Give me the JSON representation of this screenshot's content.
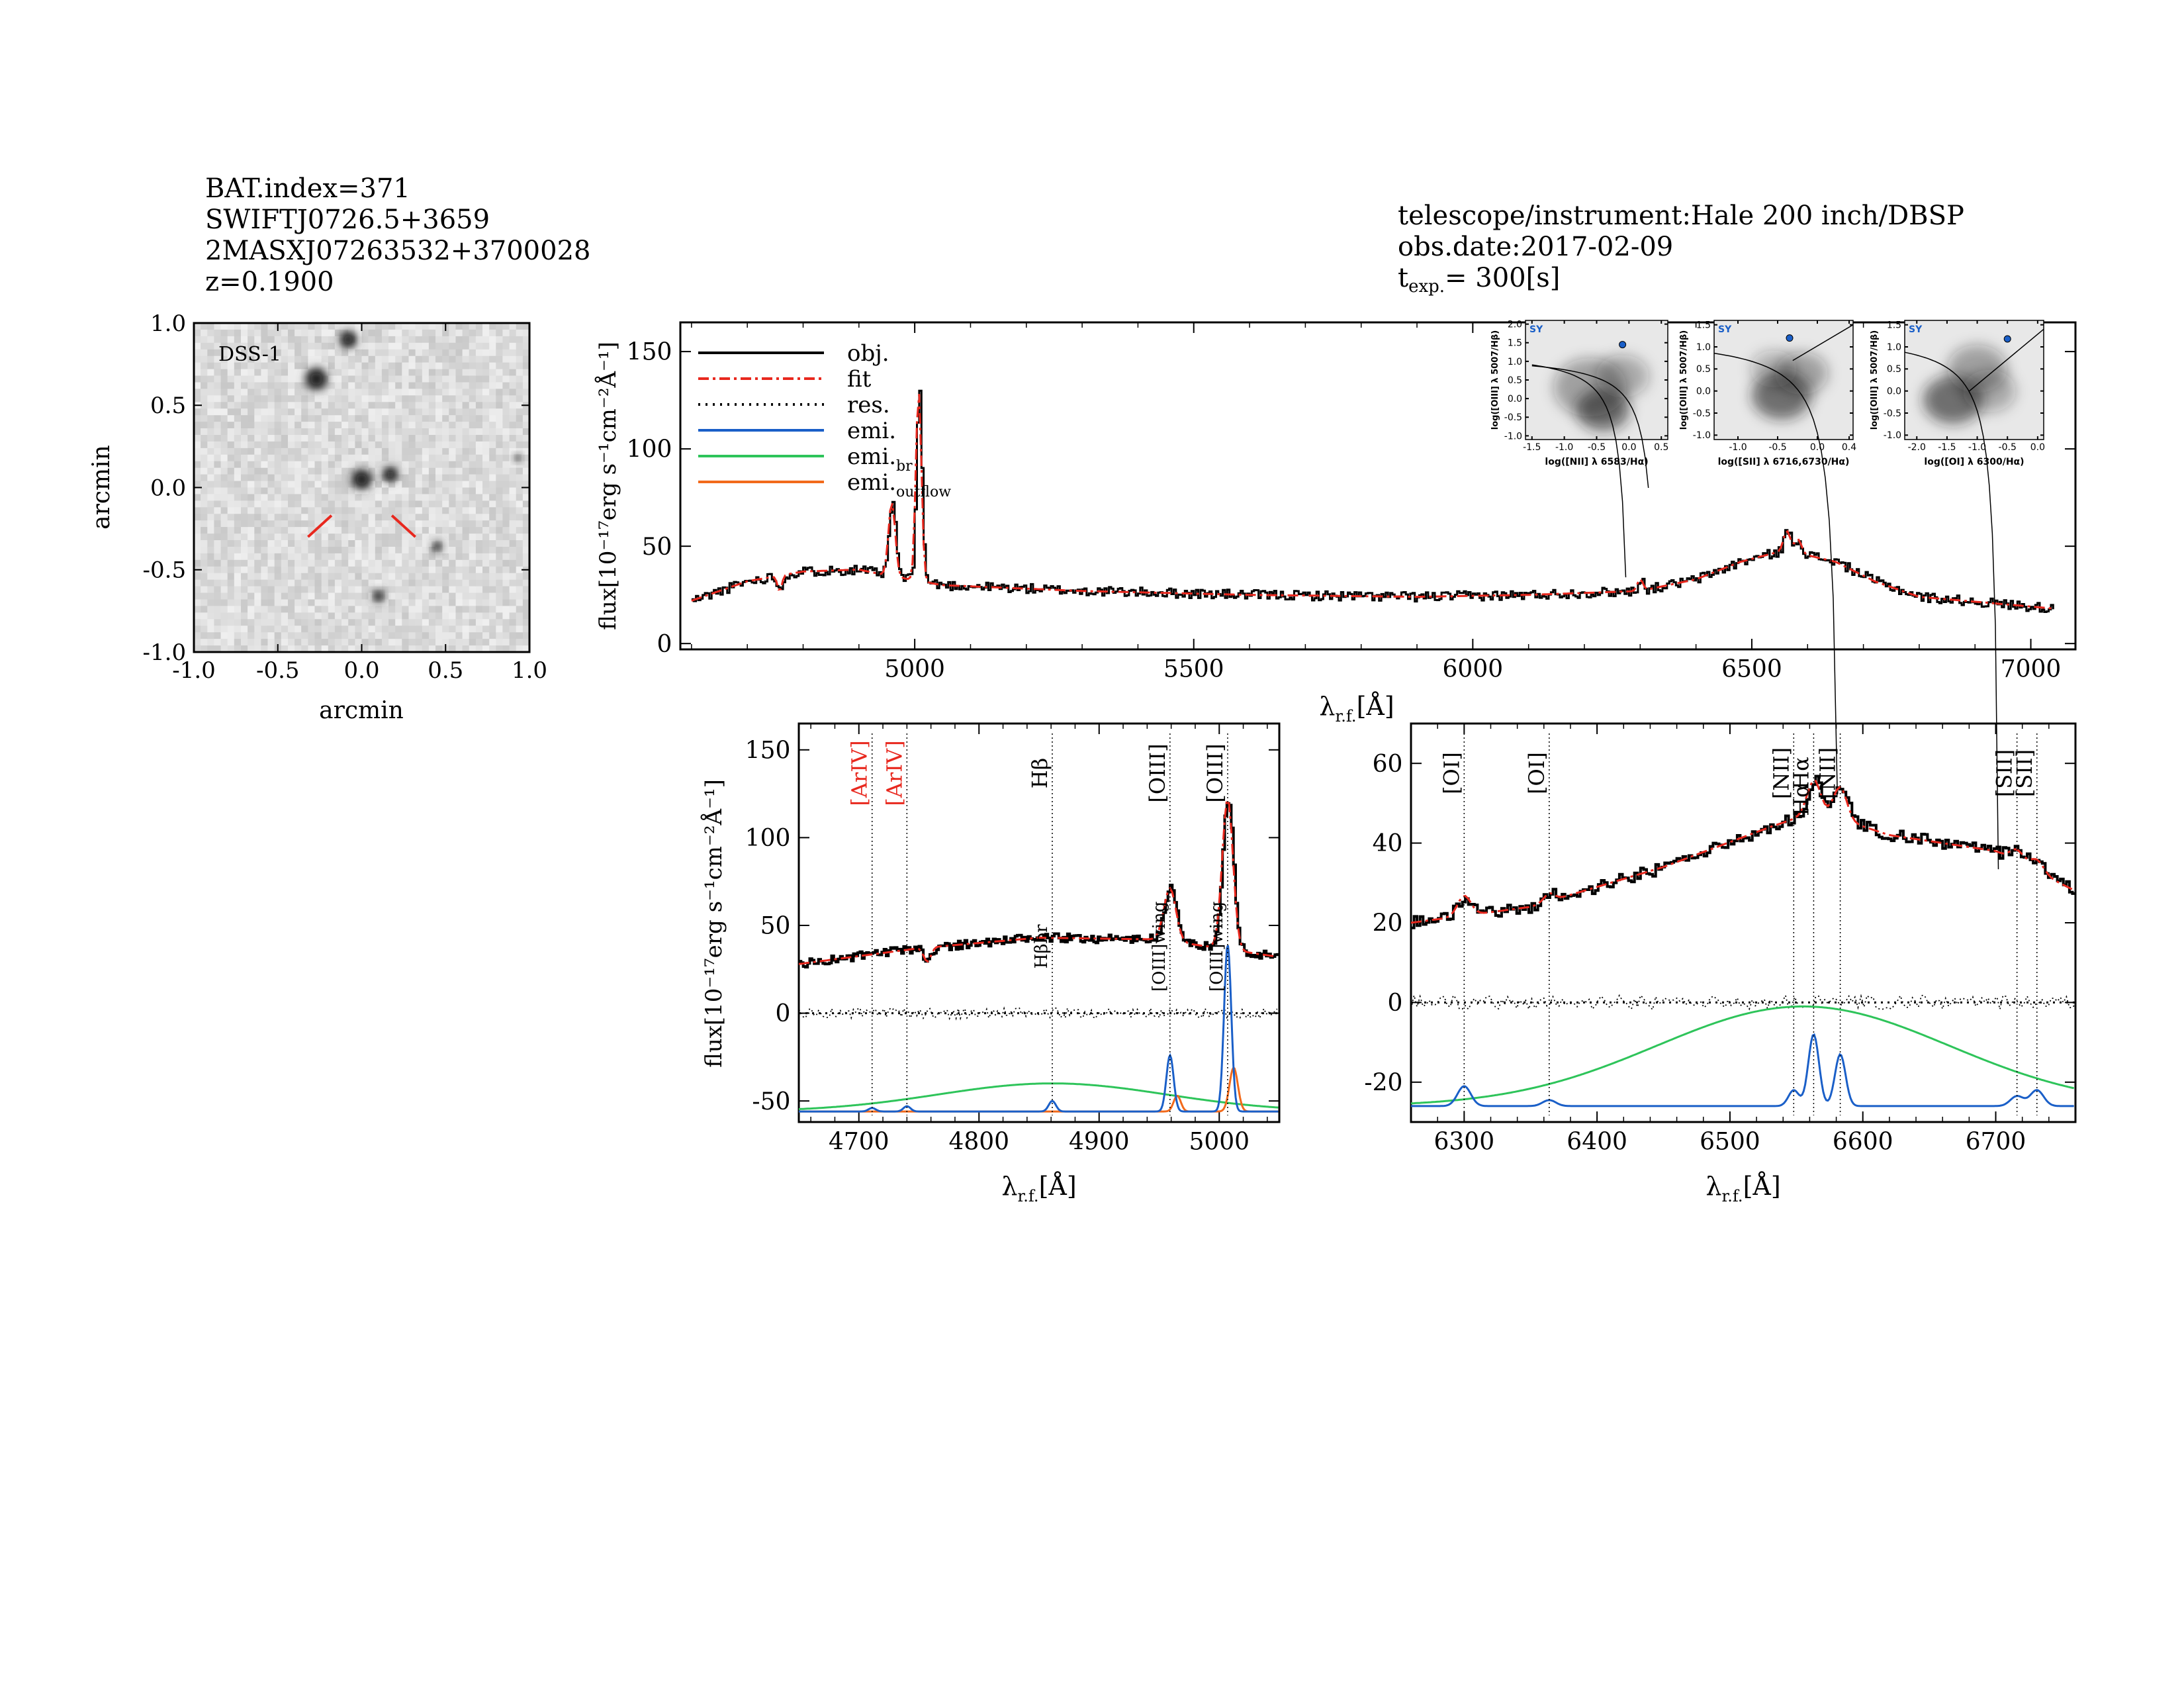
{
  "header_left": {
    "bat_index": "BAT.index=371",
    "swift_name": "SWIFTJ0726.5+3659",
    "counterpart": "2MASXJ07263532+3700028",
    "redshift": "z=0.1900"
  },
  "header_right": {
    "instrument": "telescope/instrument:Hale 200 inch/DBSP",
    "obs_date": "obs.date:2017-02-09",
    "t_symbol": "t",
    "t_sub": "exp.",
    "t_value": "= 300[s]"
  },
  "colors": {
    "obj": "#000000",
    "fit": "#e8281e",
    "emi": "#1a5fc8",
    "emi_br": "#2ec45a",
    "emi_outflow": "#f26a1b",
    "forbidden_red": "#e8281e"
  },
  "chart_data": [
    {
      "id": "dss_image",
      "type": "image",
      "label": "DSS-1",
      "xlabel": "arcmin",
      "ylabel": "arcmin",
      "xlim": [
        -1.0,
        1.0
      ],
      "ylim": [
        -1.0,
        1.0
      ],
      "xticks": [
        "-1.0",
        "-0.5",
        "0.0",
        "0.5",
        "1.0"
      ],
      "yticks": [
        "-1.0",
        "-0.5",
        "0.0",
        "0.5",
        "1.0"
      ],
      "sources_arcmin": [
        [
          -0.08,
          0.9,
          1.0
        ],
        [
          -0.27,
          0.66,
          1.3
        ],
        [
          0.0,
          0.05,
          1.2
        ],
        [
          0.17,
          0.08,
          0.9
        ],
        [
          0.45,
          -0.36,
          0.6
        ],
        [
          0.1,
          -0.66,
          0.7
        ],
        [
          0.93,
          0.18,
          0.4
        ]
      ]
    },
    {
      "id": "full_spectrum",
      "type": "line",
      "xlabel_main": "λ",
      "xlabel_sub": "r.f.",
      "xlabel_unit": "[Å]",
      "ylabel_text": "flux[10⁻¹⁷erg s⁻¹cm⁻²Å⁻¹]",
      "xlim": [
        4580,
        7080
      ],
      "ylim": [
        -3,
        165
      ],
      "xticks": [
        "5000",
        "5500",
        "6000",
        "6500",
        "7000"
      ],
      "yticks": [
        "0",
        "50",
        "100",
        "150"
      ],
      "continuum_knots": [
        [
          4600,
          22
        ],
        [
          4700,
          32
        ],
        [
          4800,
          37
        ],
        [
          4900,
          38
        ],
        [
          4950,
          35
        ],
        [
          5050,
          30
        ],
        [
          5300,
          27
        ],
        [
          5600,
          25
        ],
        [
          5900,
          24
        ],
        [
          6100,
          25
        ],
        [
          6300,
          27
        ],
        [
          6400,
          33
        ],
        [
          6480,
          42
        ],
        [
          6560,
          48
        ],
        [
          6650,
          42
        ],
        [
          6720,
          32
        ],
        [
          6800,
          24
        ],
        [
          7040,
          18
        ]
      ],
      "features": [
        {
          "center": 4959,
          "amp": 38,
          "sigma": 6
        },
        {
          "center": 5007,
          "amp": 98,
          "sigma": 5
        },
        {
          "center": 4758,
          "amp": -8,
          "sigma": 4
        },
        {
          "center": 6300,
          "amp": 6,
          "sigma": 5
        },
        {
          "center": 6563,
          "amp": 10,
          "sigma": 6
        },
        {
          "center": 6583,
          "amp": 7,
          "sigma": 6
        }
      ],
      "legend": [
        {
          "label": "obj.",
          "sub": "",
          "style": "solid",
          "color": "#000000"
        },
        {
          "label": "fit",
          "sub": "",
          "style": "dashdot",
          "color": "#e8281e"
        },
        {
          "label": "res.",
          "sub": "",
          "style": "dotted",
          "color": "#000000"
        },
        {
          "label": "emi.",
          "sub": "",
          "style": "solid",
          "color": "#1a5fc8"
        },
        {
          "label": "emi.",
          "sub": "br",
          "style": "solid",
          "color": "#2ec45a"
        },
        {
          "label": "emi.",
          "sub": "outflow",
          "style": "solid",
          "color": "#f26a1b"
        }
      ]
    },
    {
      "id": "bpt_nii",
      "type": "scatter",
      "tag": "SY",
      "xlabel": "log([NII] λ 6583/Hα)",
      "ylabel": "log([OIII] λ 5007/Hβ)",
      "xlim": [
        -1.6,
        0.6
      ],
      "ylim": [
        -1.1,
        2.1
      ],
      "xticks": [
        "-1.5",
        "-1.0",
        "-0.5",
        "0.0",
        "0.5"
      ],
      "yticks": [
        "-1.0",
        "-0.5",
        "0.0",
        "0.5",
        "1.0",
        "1.5",
        "2.0"
      ],
      "point": [
        -0.1,
        1.45
      ]
    },
    {
      "id": "bpt_sii",
      "type": "scatter",
      "tag": "SY",
      "xlabel": "log([SII] λ 6716,6730/Hα)",
      "ylabel": "log([OIII] λ 5007/Hβ)",
      "xlim": [
        -1.3,
        0.45
      ],
      "ylim": [
        -1.1,
        1.6
      ],
      "xticks": [
        "-1.0",
        "-0.5",
        "0.0",
        "0.4"
      ],
      "yticks": [
        "-1.0",
        "-0.5",
        "0.0",
        "0.5",
        "1.0",
        "1.5"
      ],
      "point": [
        -0.35,
        1.2
      ]
    },
    {
      "id": "bpt_oi",
      "type": "scatter",
      "tag": "SY",
      "xlabel": "log([OI] λ 6300/Hα)",
      "ylabel": "log([OIII] λ 5007/Hβ)",
      "xlim": [
        -2.2,
        0.1
      ],
      "ylim": [
        -1.1,
        1.6
      ],
      "xticks": [
        "-2.0",
        "-1.5",
        "-1.0",
        "-0.5",
        "0.0"
      ],
      "yticks": [
        "-1.0",
        "-0.5",
        "0.0",
        "0.5",
        "1.0",
        "1.5"
      ],
      "point": [
        -0.5,
        1.18
      ]
    },
    {
      "id": "hbeta_zoom",
      "type": "line",
      "xlabel_main": "λ",
      "xlabel_sub": "r.f.",
      "xlabel_unit": "[Å]",
      "ylabel_text": "flux[10⁻¹⁷erg s⁻¹cm⁻²Å⁻¹]",
      "xlim": [
        4650,
        5050
      ],
      "ylim": [
        -62,
        165
      ],
      "xticks": [
        "4700",
        "4800",
        "4900",
        "5000"
      ],
      "yticks": [
        "-50",
        "0",
        "50",
        "100",
        "150"
      ],
      "line_labels": [
        {
          "text": "[ArIV]",
          "x": 4711,
          "color": "#e8281e",
          "pos": "top"
        },
        {
          "text": "[ArIV]",
          "x": 4740,
          "color": "#e8281e",
          "pos": "top"
        },
        {
          "text": "Hβ",
          "x": 4861,
          "color": "#000000",
          "pos": "top"
        },
        {
          "text": "[OIII]",
          "x": 4959,
          "color": "#000000",
          "pos": "top"
        },
        {
          "text": "[OIII]",
          "x": 5007,
          "color": "#000000",
          "pos": "top"
        },
        {
          "text": "Hβbr",
          "x": 4861,
          "color": "#000000",
          "pos": "mid"
        },
        {
          "text": "[OIII]wing",
          "x": 4959,
          "color": "#000000",
          "pos": "mid"
        },
        {
          "text": "[OIII]wing",
          "x": 5007,
          "color": "#000000",
          "pos": "mid"
        }
      ],
      "continuum": [
        [
          4650,
          28
        ],
        [
          4750,
          37
        ],
        [
          4850,
          43
        ],
        [
          4950,
          42
        ],
        [
          5050,
          32
        ]
      ],
      "peaks": [
        {
          "center": 4959,
          "amp": 30,
          "sigma": 5
        },
        {
          "center": 5007,
          "amp": 86,
          "sigma": 4.5
        },
        {
          "center": 4757,
          "amp": -8,
          "sigma": 3
        }
      ],
      "emi_baseline": -56,
      "emi_narrow": [
        {
          "center": 4711,
          "amp": 2,
          "sigma": 3
        },
        {
          "center": 4740,
          "amp": 3,
          "sigma": 3
        },
        {
          "center": 4861,
          "amp": 6,
          "sigma": 3
        },
        {
          "center": 4959,
          "amp": 32,
          "sigma": 3
        },
        {
          "center": 5007,
          "amp": 95,
          "sigma": 3
        }
      ],
      "emi_broad": {
        "center": 4861,
        "amp": 16,
        "sigma": 95
      },
      "emi_outflow": [
        {
          "center": 4965,
          "amp": 9,
          "sigma": 3
        },
        {
          "center": 5012,
          "amp": 25,
          "sigma": 3.5
        }
      ]
    },
    {
      "id": "halpha_zoom",
      "type": "line",
      "xlabel_main": "λ",
      "xlabel_sub": "r.f.",
      "xlabel_unit": "[Å]",
      "xlim": [
        6260,
        6760
      ],
      "ylim": [
        -30,
        70
      ],
      "xticks": [
        "6300",
        "6400",
        "6500",
        "6600",
        "6700"
      ],
      "yticks": [
        "-20",
        "0",
        "20",
        "40",
        "60"
      ],
      "line_labels": [
        {
          "text": "[OI]",
          "x": 6300,
          "color": "#000000",
          "pos": "top"
        },
        {
          "text": "[OI]",
          "x": 6364,
          "color": "#000000",
          "pos": "top"
        },
        {
          "text": "[NII]",
          "x": 6548,
          "color": "#000000",
          "pos": "top"
        },
        {
          "text": "Hα",
          "x": 6563,
          "color": "#000000",
          "pos": "top"
        },
        {
          "text": "[NII]",
          "x": 6583,
          "color": "#000000",
          "pos": "top"
        },
        {
          "text": "[SII]",
          "x": 6716,
          "color": "#000000",
          "pos": "top"
        },
        {
          "text": "[SII]",
          "x": 6731,
          "color": "#000000",
          "pos": "top"
        },
        {
          "text": "Hα",
          "x": 6563,
          "color": "#000000",
          "pos": "top2"
        }
      ],
      "continuum": [
        [
          6260,
          20
        ],
        [
          6350,
          24
        ],
        [
          6450,
          34
        ],
        [
          6530,
          44
        ],
        [
          6565,
          48
        ],
        [
          6620,
          42
        ],
        [
          6700,
          38
        ],
        [
          6760,
          28
        ]
      ],
      "peaks": [
        {
          "center": 6300,
          "amp": 5,
          "sigma": 5
        },
        {
          "center": 6364,
          "amp": 2,
          "sigma": 4
        },
        {
          "center": 6563,
          "amp": 8,
          "sigma": 5
        },
        {
          "center": 6583,
          "amp": 8,
          "sigma": 5
        },
        {
          "center": 6716,
          "amp": 3,
          "sigma": 5
        },
        {
          "center": 6731,
          "amp": 3,
          "sigma": 5
        }
      ],
      "emi_baseline": -26,
      "emi_narrow": [
        {
          "center": 6300,
          "amp": 5,
          "sigma": 5
        },
        {
          "center": 6364,
          "amp": 1.5,
          "sigma": 5
        },
        {
          "center": 6548,
          "amp": 4,
          "sigma": 4
        },
        {
          "center": 6563,
          "amp": 18,
          "sigma": 4
        },
        {
          "center": 6583,
          "amp": 13,
          "sigma": 4
        },
        {
          "center": 6716,
          "amp": 2.5,
          "sigma": 5
        },
        {
          "center": 6731,
          "amp": 4,
          "sigma": 5
        }
      ],
      "emi_broad": {
        "center": 6555,
        "amp": 25,
        "sigma": 110
      }
    }
  ]
}
